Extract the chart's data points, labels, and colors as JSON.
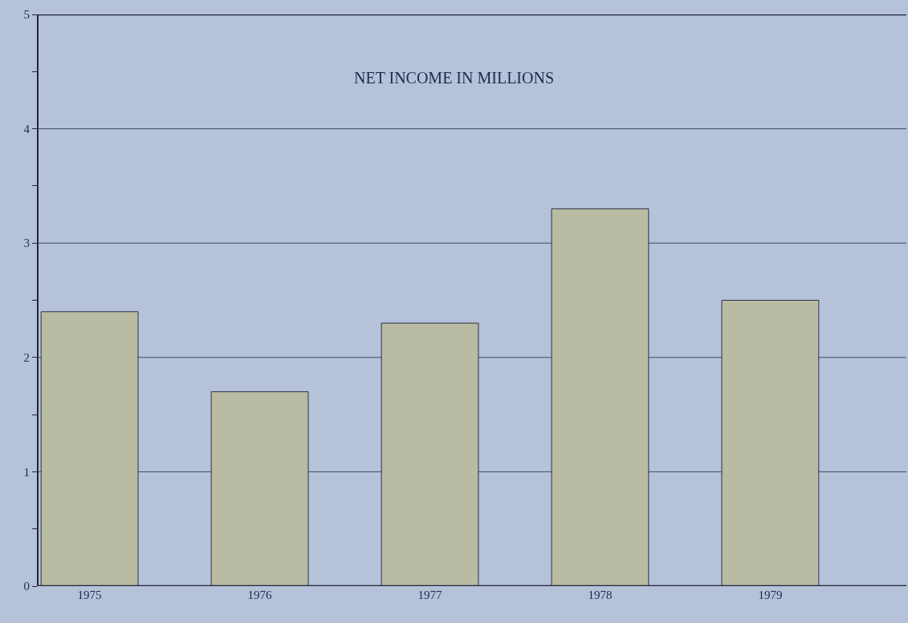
{
  "chart_data": {
    "type": "bar",
    "title": "NET INCOME IN MILLIONS",
    "categories": [
      "1975",
      "1976",
      "1977",
      "1978",
      "1979"
    ],
    "values": [
      2.4,
      1.7,
      2.3,
      3.3,
      2.5
    ],
    "color": "#b9bba2",
    "ylim": [
      0,
      5
    ],
    "yticks": [
      0,
      {
        "value": 0.5,
        "label": null
      },
      1,
      {
        "value": 1.5,
        "label": null
      },
      2,
      {
        "value": 2.5,
        "label": null
      },
      3,
      {
        "value": 3.5,
        "label": null
      },
      4,
      {
        "value": 4.5,
        "label": null
      },
      5
    ],
    "grid": "y"
  }
}
